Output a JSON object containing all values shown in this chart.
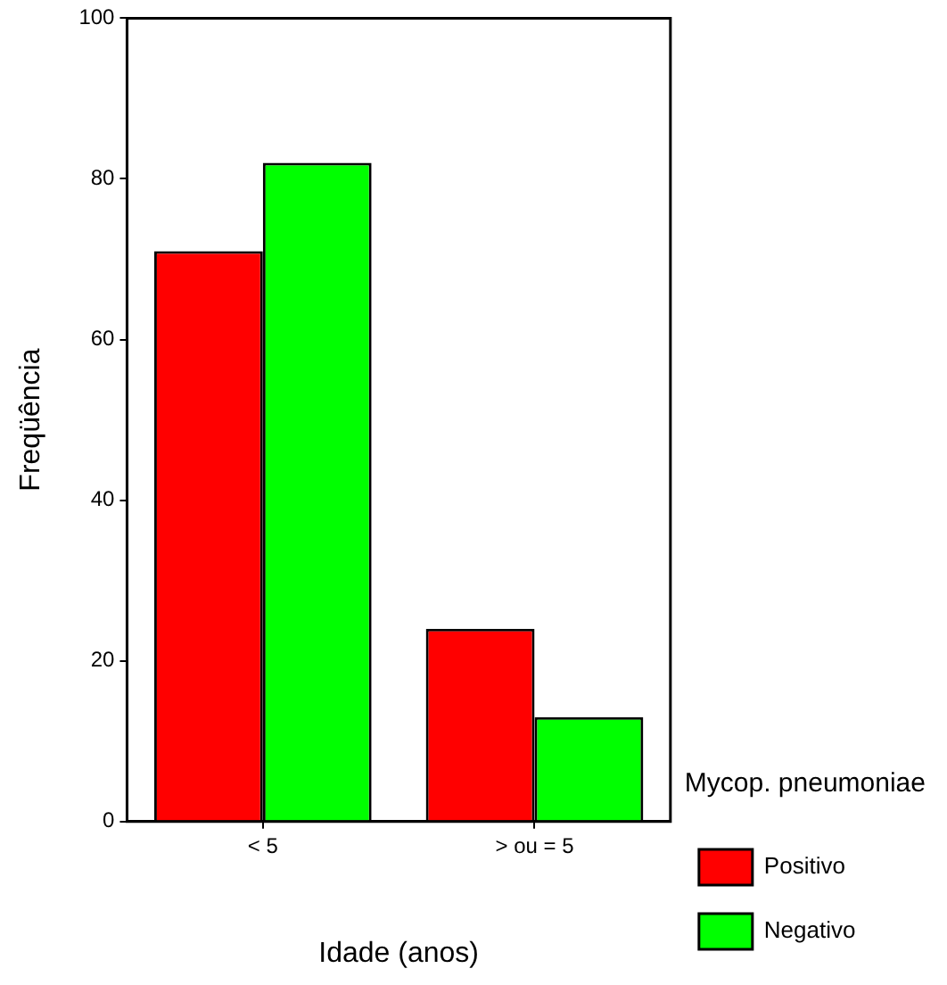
{
  "chart_data": {
    "type": "bar",
    "xlabel": "Idade (anos)",
    "ylabel": "Freqüência",
    "legend_title": "Mycop. pneumoniae",
    "categories": [
      "< 5",
      "> ou = 5"
    ],
    "series": [
      {
        "name": "Positivo",
        "color": "#ff0000",
        "values": [
          71,
          24
        ]
      },
      {
        "name": "Negativo",
        "color": "#00ff00",
        "values": [
          82,
          13
        ]
      }
    ],
    "ylim": [
      0,
      100
    ],
    "yticks": [
      0,
      20,
      40,
      60,
      80,
      100
    ],
    "legend": "right"
  }
}
